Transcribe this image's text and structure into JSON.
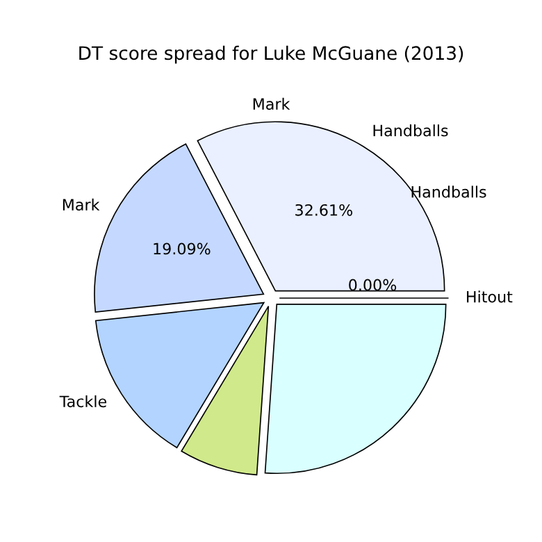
{
  "chart_data": {
    "type": "pie",
    "title": "DT score spread for Luke McGuane (2013)",
    "categories": [
      "Hitout",
      "Handballs",
      "Mark",
      "Tackle",
      null,
      null
    ],
    "values": [
      0,
      32.61,
      19.09,
      14.7,
      7.5,
      26.1
    ],
    "value_labels": [
      "0.00%",
      "32.61%",
      "19.09%",
      null,
      null,
      null
    ],
    "colors": [
      "#eaf0ff",
      "#eaf0ff",
      "#c5d8ff",
      "#b3d4ff",
      "#d0e98a",
      "#d9ffff"
    ],
    "annotations": [
      "Handballs",
      "Mark"
    ]
  }
}
